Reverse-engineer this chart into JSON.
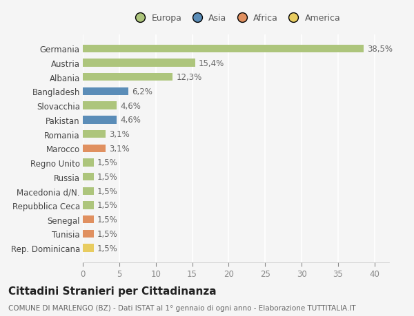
{
  "countries": [
    "Germania",
    "Austria",
    "Albania",
    "Bangladesh",
    "Slovacchia",
    "Pakistan",
    "Romania",
    "Marocco",
    "Regno Unito",
    "Russia",
    "Macedonia d/N.",
    "Repubblica Ceca",
    "Senegal",
    "Tunisia",
    "Rep. Dominicana"
  ],
  "values": [
    38.5,
    15.4,
    12.3,
    6.2,
    4.6,
    4.6,
    3.1,
    3.1,
    1.5,
    1.5,
    1.5,
    1.5,
    1.5,
    1.5,
    1.5
  ],
  "labels": [
    "38,5%",
    "15,4%",
    "12,3%",
    "6,2%",
    "4,6%",
    "4,6%",
    "3,1%",
    "3,1%",
    "1,5%",
    "1,5%",
    "1,5%",
    "1,5%",
    "1,5%",
    "1,5%",
    "1,5%"
  ],
  "continents": [
    "Europa",
    "Europa",
    "Europa",
    "Asia",
    "Europa",
    "Asia",
    "Europa",
    "Africa",
    "Europa",
    "Europa",
    "Europa",
    "Europa",
    "Africa",
    "Africa",
    "America"
  ],
  "colors": {
    "Europa": "#adc57c",
    "Asia": "#5b8db8",
    "Africa": "#e09060",
    "America": "#e8cc60"
  },
  "xlim": [
    0,
    42
  ],
  "xticks": [
    0,
    5,
    10,
    15,
    20,
    25,
    30,
    35,
    40
  ],
  "background_color": "#f5f5f5",
  "grid_color": "#ffffff",
  "title": "Cittadini Stranieri per Cittadinanza",
  "subtitle": "COMUNE DI MARLENGO (BZ) - Dati ISTAT al 1° gennaio di ogni anno - Elaborazione TUTTITALIA.IT",
  "bar_height": 0.55,
  "label_fontsize": 8.5,
  "tick_fontsize": 8.5,
  "title_fontsize": 11,
  "subtitle_fontsize": 7.5,
  "legend_order": [
    "Europa",
    "Asia",
    "Africa",
    "America"
  ]
}
